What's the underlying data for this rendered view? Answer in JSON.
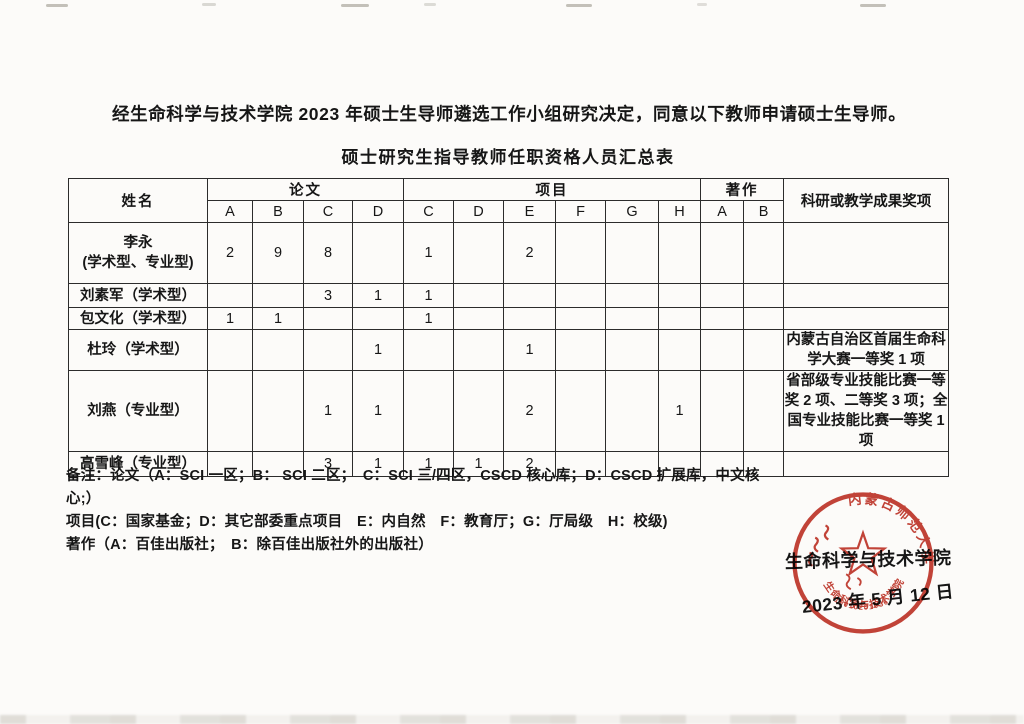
{
  "document": {
    "intro": "经生命科学与技术学院 2023 年硕士生导师遴选工作小组研究决定，同意以下教师申请硕士生导师。",
    "table_title": "硕士研究生指导教师任职资格人员汇总表"
  },
  "table": {
    "headers": {
      "name": "姓名",
      "papers": "论文",
      "projects": "项目",
      "works": "著作",
      "awards": "科研或教学成果奖项",
      "paper_cols": [
        "A",
        "B",
        "C",
        "D"
      ],
      "project_cols": [
        "C",
        "D",
        "E",
        "F",
        "G",
        "H"
      ],
      "work_cols": [
        "A",
        "B"
      ]
    },
    "rows": [
      {
        "name": "李永",
        "name2": "(学术型、专业型)",
        "papers": [
          "2",
          "9",
          "8",
          ""
        ],
        "projects": [
          "1",
          "",
          "2",
          "",
          "",
          ""
        ],
        "works": [
          "",
          ""
        ],
        "award": ""
      },
      {
        "name": "刘素军（学术型）",
        "name2": "",
        "papers": [
          "",
          "",
          "3",
          "1"
        ],
        "projects": [
          "1",
          "",
          "",
          "",
          "",
          ""
        ],
        "works": [
          "",
          ""
        ],
        "award": ""
      },
      {
        "name": "包文化（学术型）",
        "name2": "",
        "papers": [
          "1",
          "1",
          "",
          ""
        ],
        "projects": [
          "1",
          "",
          "",
          "",
          "",
          ""
        ],
        "works": [
          "",
          ""
        ],
        "award": ""
      },
      {
        "name": "杜玲（学术型）",
        "name2": "",
        "papers": [
          "",
          "",
          "",
          "1"
        ],
        "projects": [
          "",
          "",
          "1",
          "",
          "",
          ""
        ],
        "works": [
          "",
          ""
        ],
        "award": "内蒙古自治区首届生命科学大赛一等奖 1 项"
      },
      {
        "name": "刘燕（专业型）",
        "name2": "",
        "papers": [
          "",
          "",
          "1",
          "1"
        ],
        "projects": [
          "",
          "",
          "2",
          "",
          "",
          "1"
        ],
        "works": [
          "",
          ""
        ],
        "award": "省部级专业技能比赛一等奖 2 项、二等奖 3 项；全国专业技能比赛一等奖 1 项"
      },
      {
        "name": "高雪峰（专业型）",
        "name2": "",
        "papers": [
          "",
          "",
          "3",
          "1"
        ],
        "projects": [
          "1",
          "1",
          "2",
          "",
          "",
          ""
        ],
        "works": [
          "",
          ""
        ],
        "award": ""
      }
    ]
  },
  "notes": {
    "lines": [
      "备注：论文（A：SCI 一区；B： SCI 二区；　C：SCI 三/四区，CSCD 核心库；D：CSCD 扩展库，中文核心;）",
      "项目(C：国家基金；D：其它部委重点项目　E：内自然　F：教育厅；G：厅局级　H：校级)",
      "著作（A：百佳出版社；　B：除百佳出版社外的出版社）"
    ]
  },
  "stamp": {
    "university": "内蒙古师范大学",
    "college": "生命科学与技术学院",
    "serial": "15010201036",
    "color": "#c13a2e"
  },
  "signature": {
    "college": "生命科学与技术学院",
    "date": "2023 年 5 月 12 日"
  }
}
